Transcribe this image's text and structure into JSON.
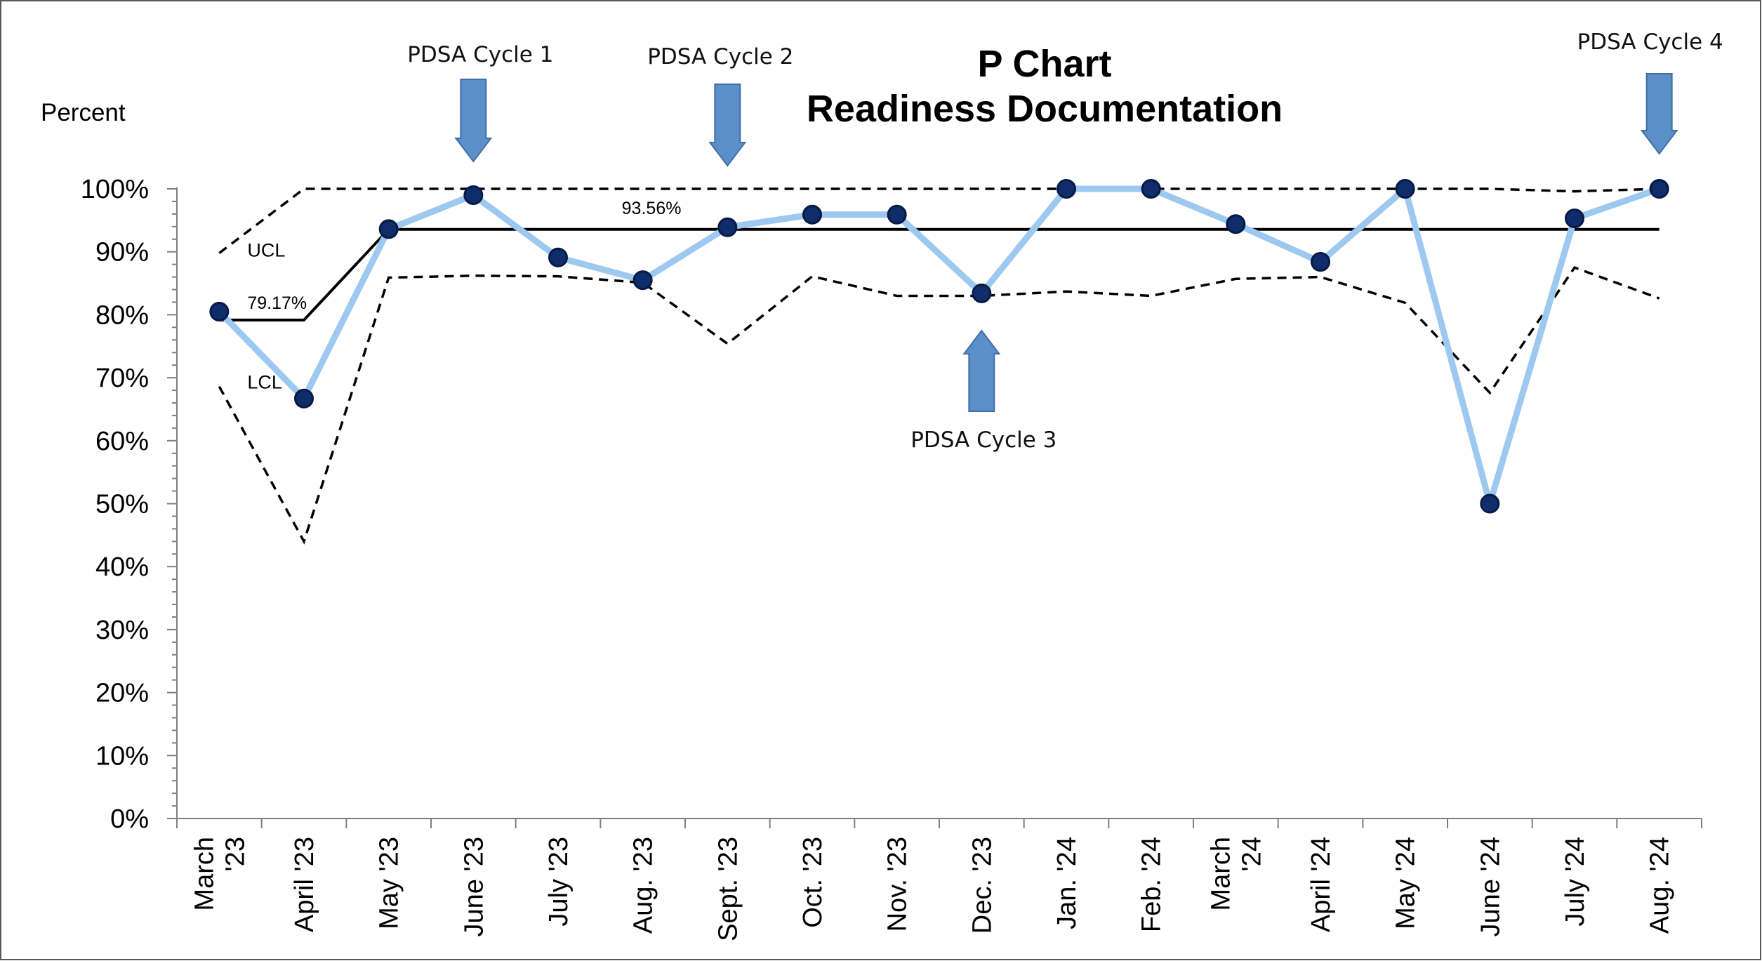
{
  "chart_data": {
    "type": "line",
    "title_line1": "P Chart",
    "title_line2": "Readiness Documentation",
    "ylabel": "Percent",
    "xlabel": "",
    "ylim": [
      0,
      100
    ],
    "y_ticks": [
      "0%",
      "10%",
      "20%",
      "30%",
      "40%",
      "50%",
      "60%",
      "70%",
      "80%",
      "90%",
      "100%"
    ],
    "categories": [
      [
        "March",
        "'23"
      ],
      [
        "April '23"
      ],
      [
        "May '23"
      ],
      [
        "June '23"
      ],
      [
        "July '23"
      ],
      [
        "Aug. '23"
      ],
      [
        "Sept. '23"
      ],
      [
        "Oct. '23"
      ],
      [
        "Nov. '23"
      ],
      [
        "Dec. '23"
      ],
      [
        "Jan. '24"
      ],
      [
        "Feb. '24"
      ],
      [
        "March",
        "'24"
      ],
      [
        "April '24"
      ],
      [
        "May '24"
      ],
      [
        "June '24"
      ],
      [
        "July '24"
      ],
      [
        "Aug. '24"
      ]
    ],
    "series": [
      {
        "key": "proportion",
        "values": [
          80.5,
          66.7,
          93.6,
          99.0,
          89.1,
          85.5,
          93.9,
          95.9,
          95.9,
          83.4,
          100,
          100,
          94.4,
          88.4,
          100,
          50.0,
          95.3,
          100
        ]
      },
      {
        "key": "ucl",
        "values": [
          89.8,
          100,
          100,
          100,
          100,
          100,
          100,
          100,
          100,
          100,
          100,
          100,
          100,
          100,
          100,
          100,
          99.6,
          100
        ]
      },
      {
        "key": "lcl",
        "values": [
          68.6,
          44.0,
          85.9,
          86.2,
          86.1,
          85.1,
          75.4,
          86.1,
          83.0,
          83.0,
          83.7,
          83.0,
          85.7,
          86.0,
          81.9,
          67.6,
          87.5,
          82.6
        ]
      },
      {
        "key": "center",
        "values": [
          79.17,
          79.17,
          93.56,
          93.56,
          93.56,
          93.56,
          93.56,
          93.56,
          93.56,
          93.56,
          93.56,
          93.56,
          93.56,
          93.56,
          93.56,
          93.56,
          93.56,
          93.56
        ]
      }
    ],
    "center_labels": [
      "79.17%",
      "93.56%"
    ],
    "limit_labels": {
      "ucl": "UCL",
      "lcl": "LCL"
    },
    "annotations": [
      {
        "text": "PDSA Cycle 1",
        "category_index": 3,
        "direction": "down"
      },
      {
        "text": "PDSA Cycle 2",
        "category_index": 6,
        "direction": "down"
      },
      {
        "text": "PDSA Cycle 3",
        "category_index": 9,
        "direction": "up"
      },
      {
        "text": "PDSA Cycle 4",
        "category_index": 17,
        "direction": "down"
      }
    ],
    "colors": {
      "proportion_line": "#9dc8ef",
      "marker_fill": "#0f2d6b",
      "marker_stroke": "#061a45",
      "center_line": "#000000",
      "limit_line": "#000000",
      "arrow_fill": "#5b8fc9",
      "arrow_stroke": "#3f6fa8",
      "frame": "#555555"
    },
    "grid": false,
    "legend": "none"
  }
}
